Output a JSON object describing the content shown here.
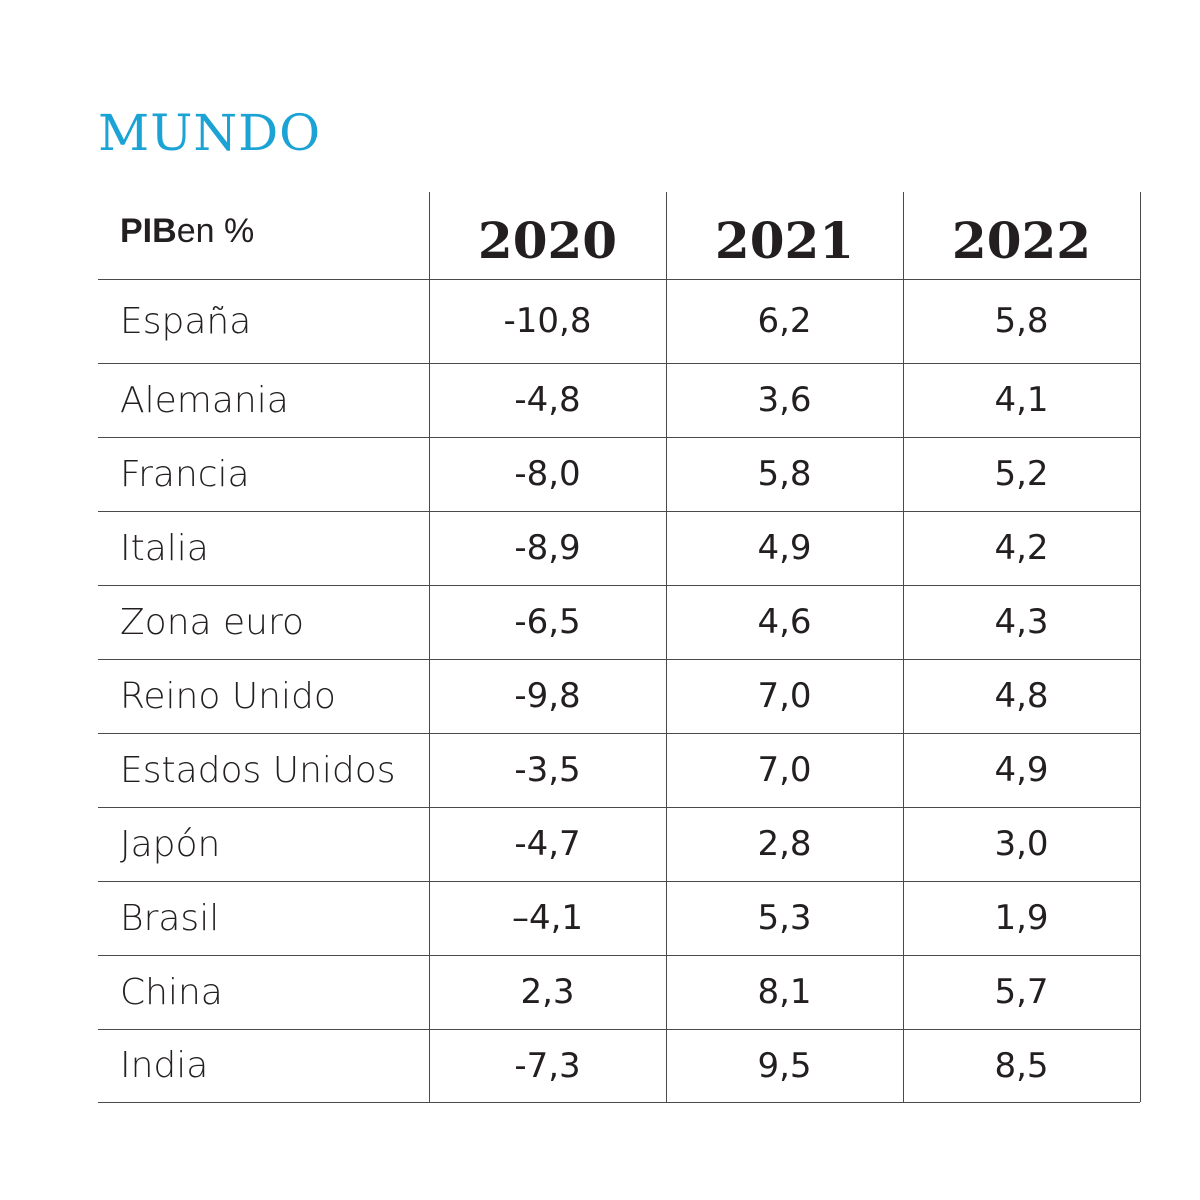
{
  "title": "MUNDO",
  "chart_data": {
    "type": "table",
    "header": {
      "label_bold": "PIB",
      "label_rest": " en %",
      "years": [
        "2020",
        "2021",
        "2022"
      ]
    },
    "rows": [
      {
        "country": "España",
        "values": [
          "-10,8",
          "6,2",
          "5,8"
        ]
      },
      {
        "country": "Alemania",
        "values": [
          "-4,8",
          "3,6",
          "4,1"
        ]
      },
      {
        "country": "Francia",
        "values": [
          "-8,0",
          "5,8",
          "5,2"
        ]
      },
      {
        "country": "Italia",
        "values": [
          "-8,9",
          "4,9",
          "4,2"
        ]
      },
      {
        "country": "Zona euro",
        "values": [
          "-6,5",
          "4,6",
          "4,3"
        ]
      },
      {
        "country": "Reino Unido",
        "values": [
          "-9,8",
          "7,0",
          "4,8"
        ]
      },
      {
        "country": "Estados Unidos",
        "values": [
          "-3,5",
          "7,0",
          "4,9"
        ]
      },
      {
        "country": "Japón",
        "values": [
          "-4,7",
          "2,8",
          "3,0"
        ]
      },
      {
        "country": "Brasil",
        "values": [
          "–4,1",
          "5,3",
          "1,9"
        ]
      },
      {
        "country": "China",
        "values": [
          "2,3",
          "8,1",
          "5,7"
        ]
      },
      {
        "country": "India",
        "values": [
          "-7,3",
          "9,5",
          "8,5"
        ]
      }
    ]
  },
  "colors": {
    "title": "#1aa3d4",
    "text": "#231f20",
    "rule": "#4a4a4a"
  }
}
